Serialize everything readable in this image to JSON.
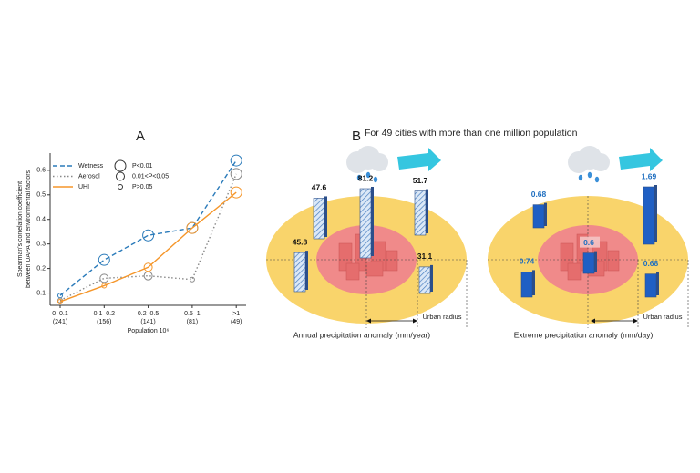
{
  "chart_data": {
    "type": "line",
    "title": "A",
    "y_label": [
      "Spearman's correlation coefficient",
      "between UAPA and environmental factors"
    ],
    "x_label": "Population 10⁶",
    "categories": [
      "0–0.1",
      "0.1–0.2",
      "0.2–0.5",
      "0.5–1",
      ">1"
    ],
    "category_notes": [
      "(241)",
      "(156)",
      "(141)",
      "(81)",
      "(49)"
    ],
    "ylim": [
      0.05,
      0.67
    ],
    "yticks": [
      0.1,
      0.2,
      0.3,
      0.4,
      0.5,
      0.6
    ],
    "significance_legend": [
      "P<0.01",
      "0.01<P<0.05",
      "P>0.05"
    ],
    "series": [
      {
        "name": "Wetness",
        "color": "#2b7bba",
        "dash": "5,3",
        "values": [
          0.09,
          0.235,
          0.335,
          0.365,
          0.64
        ],
        "significance": [
          2,
          0,
          0,
          0,
          0
        ]
      },
      {
        "name": "Aerosol",
        "color": "#888888",
        "dash": "1.5,2.5",
        "values": [
          0.07,
          0.16,
          0.17,
          0.155,
          0.585
        ],
        "significance": [
          2,
          1,
          1,
          2,
          0
        ]
      },
      {
        "name": "UHI",
        "color": "#f5962a",
        "dash": "",
        "values": [
          0.065,
          0.13,
          0.205,
          0.365,
          0.51
        ],
        "significance": [
          2,
          2,
          1,
          0,
          0
        ]
      }
    ]
  },
  "panel_b": {
    "label": "B",
    "title": "For 49 cities with more than one million population",
    "maps": [
      {
        "values": [
          47.6,
          81.2,
          51.7,
          45.8,
          31.1
        ],
        "caption": "Annual precipitation anomaly (mm/year)",
        "radius_label": "Urban radius"
      },
      {
        "values": [
          0.68,
          1.69,
          0.6,
          0.74,
          0.68
        ],
        "caption": "Extreme precipitation anomaly (mm/day)",
        "radius_label": "Urban radius"
      }
    ]
  }
}
